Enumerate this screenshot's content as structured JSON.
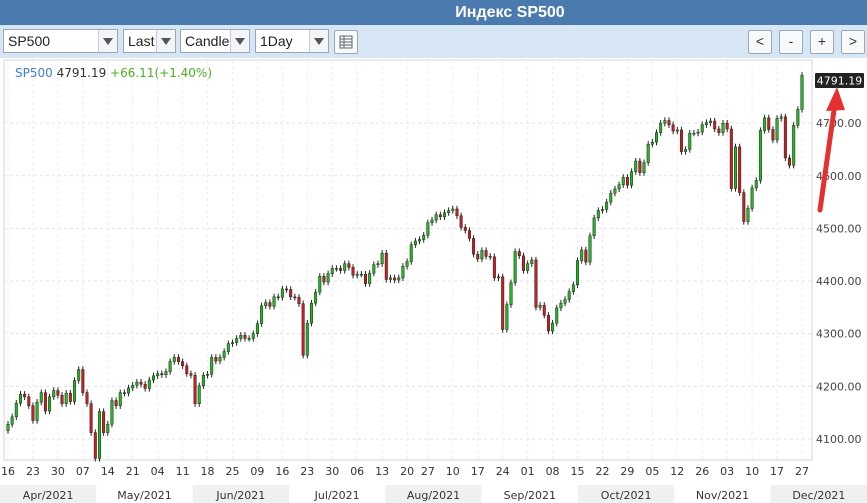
{
  "title": "Индекс SP500",
  "toolbar": {
    "symbol": "SP500",
    "price_field": "Last",
    "chart_type": "Candle",
    "interval": "1Day",
    "nav_buttons": [
      "<",
      "-",
      "+",
      ">"
    ]
  },
  "header": {
    "symbol": "SP500",
    "price": "4791.19",
    "change": "+66.11(+1.40%)"
  },
  "price_badge": "4791.19",
  "colors": {
    "up": "#22b822",
    "down": "#c81f1f",
    "arrow": "#e53030",
    "title_bar": "#4a7aae",
    "toolbar": "#d6e6f5"
  },
  "chart_data": {
    "type": "candlestick",
    "ylim": [
      4060,
      4820
    ],
    "y_ticks": [
      "4100.00",
      "4200.00",
      "4300.00",
      "4400.00",
      "4500.00",
      "4600.00",
      "4700.00"
    ],
    "x_day_labels": [
      "16",
      "23",
      "30",
      "07",
      "14",
      "21",
      "04",
      "11",
      "18",
      "25",
      "09",
      "16",
      "23",
      "30",
      "06",
      "13",
      "20",
      "27",
      "10",
      "17",
      "24",
      "01",
      "08",
      "15",
      "22",
      "29",
      "05",
      "12",
      "26",
      "03",
      "10",
      "17",
      "27"
    ],
    "x_month_labels": [
      "Apr/2021",
      "May/2021",
      "Jun/2021",
      "Jul/2021",
      "Aug/2021",
      "Sep/2021",
      "Oct/2021",
      "Nov/2021",
      "Dec/2021"
    ],
    "close": [
      4128,
      4142,
      4168,
      4185,
      4180,
      4163,
      4135,
      4170,
      4188,
      4153,
      4180,
      4192,
      4183,
      4167,
      4187,
      4171,
      4211,
      4232,
      4188,
      4167,
      4112,
      4063,
      4152,
      4112,
      4128,
      4173,
      4163,
      4188,
      4187,
      4197,
      4202,
      4208,
      4204,
      4196,
      4212,
      4220,
      4224,
      4222,
      4228,
      4247,
      4255,
      4247,
      4239,
      4224,
      4221,
      4167,
      4201,
      4221,
      4223,
      4255,
      4248,
      4255,
      4266,
      4281,
      4283,
      4291,
      4297,
      4291,
      4291,
      4300,
      4319,
      4353,
      4359,
      4352,
      4370,
      4369,
      4385,
      4384,
      4370,
      4369,
      4357,
      4259,
      4320,
      4358,
      4379,
      4409,
      4398,
      4414,
      4424,
      4424,
      4420,
      4433,
      4426,
      4411,
      4413,
      4413,
      4395,
      4415,
      4431,
      4433,
      4453,
      4403,
      4406,
      4402,
      4406,
      4428,
      4437,
      4469,
      4476,
      4479,
      4487,
      4511,
      4516,
      4526,
      4522,
      4530,
      4534,
      4537,
      4524,
      4502,
      4496,
      4481,
      4451,
      4442,
      4458,
      4447,
      4446,
      4406,
      4408,
      4308,
      4355,
      4397,
      4456,
      4448,
      4420,
      4433,
      4440,
      4350,
      4354,
      4335,
      4305,
      4320,
      4349,
      4358,
      4365,
      4380,
      4393,
      4439,
      4459,
      4436,
      4486,
      4520,
      4534,
      4536,
      4550,
      4567,
      4575,
      4583,
      4597,
      4582,
      4608,
      4628,
      4606,
      4625,
      4660,
      4664,
      4682,
      4700,
      4705,
      4697,
      4685,
      4687,
      4646,
      4650,
      4681,
      4681,
      4683,
      4697,
      4701,
      4704,
      4689,
      4682,
      4700,
      4689,
      4576,
      4655,
      4568,
      4513,
      4538,
      4577,
      4591,
      4686,
      4710,
      4688,
      4668,
      4709,
      4712,
      4634,
      4620,
      4696,
      4726,
      4791
    ]
  }
}
